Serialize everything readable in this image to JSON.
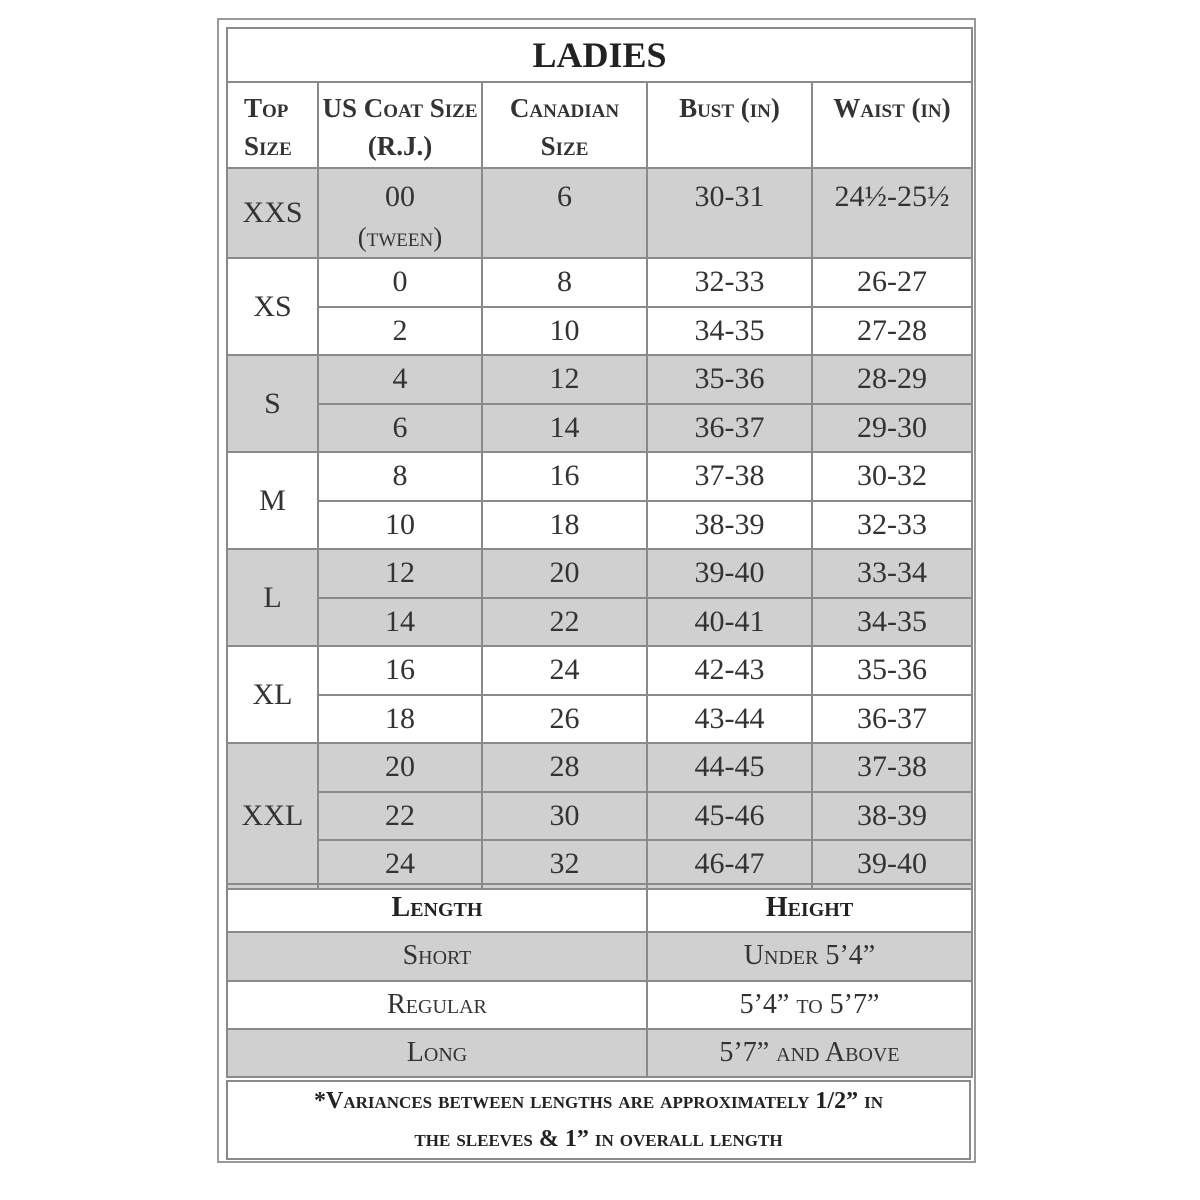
{
  "title": "LADIES",
  "headers": [
    "Top Size",
    "US Coat Size (R.J.)",
    "Canadian Size",
    "Bust (in)",
    "Waist (in)"
  ],
  "groups": [
    {
      "top": "XXS",
      "shaded": true,
      "rows": [
        {
          "us": "00",
          "us_note": "(tween)",
          "ca": "6",
          "bust": "30-31",
          "waist": "24½-25½"
        }
      ]
    },
    {
      "top": "XS",
      "shaded": false,
      "rows": [
        {
          "us": "0",
          "ca": "8",
          "bust": "32-33",
          "waist": "26-27"
        },
        {
          "us": "2",
          "ca": "10",
          "bust": "34-35",
          "waist": "27-28"
        }
      ]
    },
    {
      "top": "S",
      "shaded": true,
      "rows": [
        {
          "us": "4",
          "ca": "12",
          "bust": "35-36",
          "waist": "28-29"
        },
        {
          "us": "6",
          "ca": "14",
          "bust": "36-37",
          "waist": "29-30"
        }
      ]
    },
    {
      "top": "M",
      "shaded": false,
      "rows": [
        {
          "us": "8",
          "ca": "16",
          "bust": "37-38",
          "waist": "30-32"
        },
        {
          "us": "10",
          "ca": "18",
          "bust": "38-39",
          "waist": "32-33"
        }
      ]
    },
    {
      "top": "L",
      "shaded": true,
      "rows": [
        {
          "us": "12",
          "ca": "20",
          "bust": "39-40",
          "waist": "33-34"
        },
        {
          "us": "14",
          "ca": "22",
          "bust": "40-41",
          "waist": "34-35"
        }
      ]
    },
    {
      "top": "XL",
      "shaded": false,
      "rows": [
        {
          "us": "16",
          "ca": "24",
          "bust": "42-43",
          "waist": "35-36"
        },
        {
          "us": "18",
          "ca": "26",
          "bust": "43-44",
          "waist": "36-37"
        }
      ]
    },
    {
      "top": "XXL",
      "shaded": true,
      "rows": [
        {
          "us": "20",
          "ca": "28",
          "bust": "44-45",
          "waist": "37-38"
        },
        {
          "us": "22",
          "ca": "30",
          "bust": "45-46",
          "waist": "38-39"
        },
        {
          "us": "24",
          "ca": "32",
          "bust": "46-47",
          "waist": "39-40"
        }
      ]
    }
  ],
  "length_table": {
    "headers": [
      "Length",
      "Height"
    ],
    "rows": [
      {
        "length": "Short",
        "height": "Under 5’4”",
        "shaded": true
      },
      {
        "length": "Regular",
        "height": "5’4” to 5’7”",
        "shaded": false
      },
      {
        "length": "Long",
        "height": "5’7” and Above",
        "shaded": true
      }
    ]
  },
  "footnote": {
    "line1": "*Variances between lengths are approximately 1/2” in",
    "line2": "the sleeves & 1” in overall length"
  },
  "colors": {
    "shade": "#d0d0d0",
    "border": "#8a8a8a"
  }
}
